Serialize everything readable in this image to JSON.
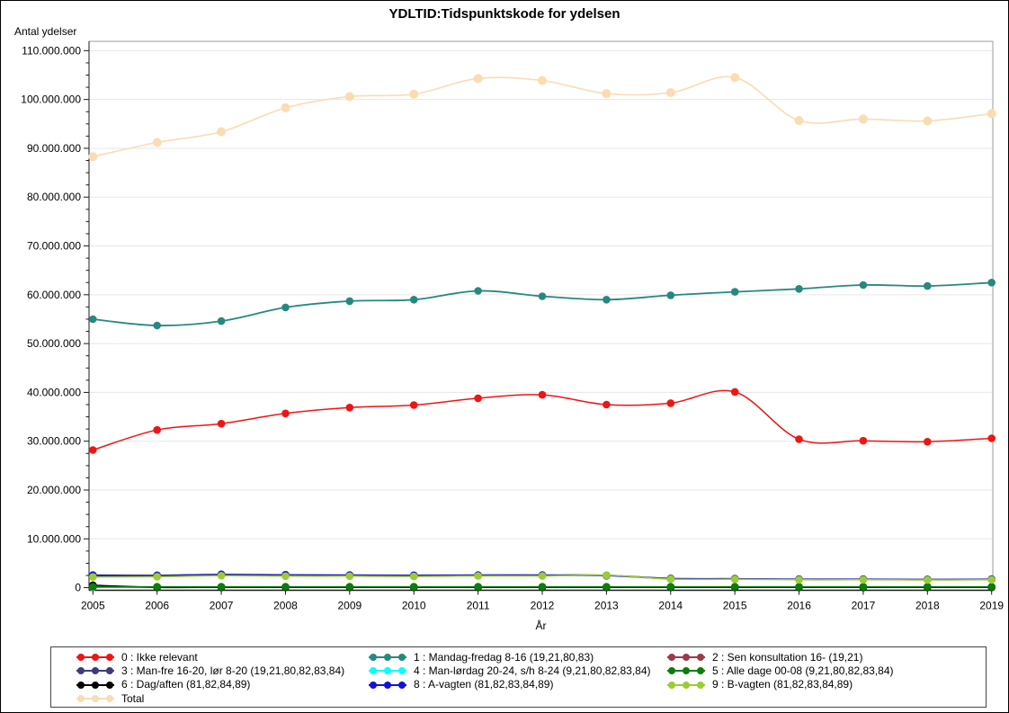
{
  "window": {
    "title": "YDLTID:Tidspunktskode for ydelsen"
  },
  "chart_data": {
    "type": "line",
    "title": "YDLTID:Tidspunktskode for ydelsen",
    "ylabel": "Antal ydelser",
    "xlabel": "År",
    "x": [
      2005,
      2006,
      2007,
      2008,
      2009,
      2010,
      2011,
      2012,
      2013,
      2014,
      2015,
      2016,
      2017,
      2018,
      2019
    ],
    "ylim": [
      0,
      110000000
    ],
    "y_major_step_millions": 10,
    "y_minor_step_millions": 2.5,
    "y_tick_labels": [
      "0",
      "10.000.000",
      "20.000.000",
      "30.000.000",
      "40.000.000",
      "50.000.000",
      "60.000.000",
      "70.000.000",
      "80.000.000",
      "90.000.000",
      "100.000.000",
      "110.000.000"
    ],
    "grid": true,
    "legend_position": "bottom",
    "values_unit": "millions",
    "series": {
      "s0": {
        "label": "0 : Ikke relevant",
        "color": "#f01414",
        "values": [
          28.2,
          32.3,
          33.6,
          35.7,
          36.9,
          37.4,
          38.8,
          39.5,
          37.5,
          37.8,
          40.1,
          30.4,
          30.1,
          29.9,
          30.6
        ]
      },
      "s1": {
        "label": "1 : Mandag-fredag 8-16 (19,21,80,83)",
        "color": "#26897f",
        "values": [
          55.0,
          53.7,
          54.6,
          57.4,
          58.7,
          59.0,
          60.8,
          59.7,
          59.0,
          59.9,
          60.6,
          61.2,
          62.0,
          61.8,
          62.5
        ]
      },
      "s2": {
        "label": "2 : Sen konsultation 16- (19,21)",
        "color": "#9a3b4a",
        "values": [
          0.1,
          0.1,
          0.1,
          0.1,
          0.1,
          0.1,
          0.1,
          0.1,
          0.1,
          0.1,
          0.1,
          0.1,
          0.1,
          0.1,
          0.1
        ]
      },
      "s3": {
        "label": "3 : Man-fre 16-20, lør 8-20 (19,21,80,82,83,84)",
        "color": "#3d3d78",
        "values": [
          2.6,
          2.55,
          2.75,
          2.65,
          2.6,
          2.55,
          2.6,
          2.6,
          2.55,
          1.9,
          1.85,
          1.75,
          1.75,
          1.7,
          1.75
        ]
      },
      "s4": {
        "label": "4 : Man-lørdag 20-24, s/h 8-24 (9,21,80,82,83,84)",
        "color": "#00ffff",
        "values": [
          0.12,
          0.12,
          0.12,
          0.12,
          0.12,
          0.12,
          0.12,
          0.12,
          0.12,
          0.12,
          0.12,
          0.12,
          0.12,
          0.12,
          0.12
        ]
      },
      "s5": {
        "label": "5 : Alle dage 00-08 (9,21,80,82,83,84)",
        "color": "#0a7d0a",
        "values": [
          0.18,
          0.18,
          0.18,
          0.18,
          0.18,
          0.18,
          0.18,
          0.18,
          0.18,
          0.18,
          0.18,
          0.18,
          0.18,
          0.18,
          0.18
        ]
      },
      "s6": {
        "label": "6 : Dag/aften (81,82,84,89)",
        "color": "#000000",
        "values": [
          0.5,
          0.08,
          0.08,
          0.08,
          0.08,
          0.08,
          0.08,
          0.08,
          0.08,
          0.08,
          0.08,
          0.08,
          0.08,
          0.08,
          0.08
        ]
      },
      "s8": {
        "label": "8 : A-vagten (81,82,83,84,89)",
        "color": "#1111dd",
        "values": [
          2.45,
          2.4,
          2.6,
          2.5,
          2.5,
          2.45,
          2.5,
          2.5,
          2.45,
          1.8,
          1.78,
          1.7,
          1.7,
          1.65,
          1.7
        ]
      },
      "s9": {
        "label": "9 : B-vagten (81,82,83,84,89)",
        "color": "#9acd32",
        "values": [
          2.2,
          2.25,
          2.45,
          2.35,
          2.35,
          2.3,
          2.4,
          2.4,
          2.55,
          1.75,
          1.72,
          1.62,
          1.62,
          1.58,
          1.62
        ]
      },
      "total": {
        "label": "Total",
        "color": "#fadcb2",
        "values": [
          88.3,
          91.2,
          93.4,
          98.3,
          100.6,
          101.1,
          104.3,
          103.9,
          101.2,
          101.4,
          104.5,
          95.7,
          96.0,
          95.6,
          97.1
        ]
      }
    },
    "plot_order": [
      "total",
      "s1",
      "s0",
      "s2",
      "s4",
      "s6",
      "s5",
      "s3",
      "s8",
      "s9"
    ],
    "legend_columns": [
      [
        "s0",
        "s3",
        "s6",
        "total"
      ],
      [
        "s1",
        "s4",
        "s8"
      ],
      [
        "s2",
        "s5",
        "s9"
      ]
    ],
    "colors": {
      "gridline": "#e7e7e7",
      "frame": "#9b9b9b",
      "axis": "#1a1a1a",
      "text": "#000000"
    }
  }
}
